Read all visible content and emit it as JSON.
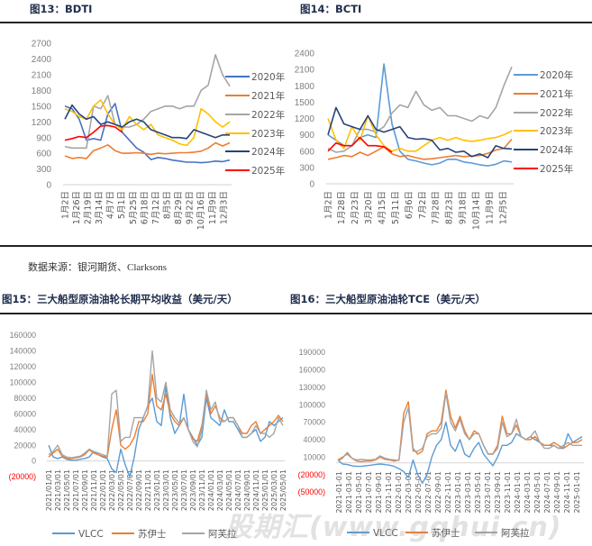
{
  "figures": {
    "fig13_title": "图13：BDTI",
    "fig14_title": "图14：BCTI",
    "fig15_title": "图15：三大船型原油油轮长期平均收益（美元/天）",
    "fig16_title": "图16：三大船型原油油轮TCE（美元/天）"
  },
  "source": "数据来源：银河期货、Clarksons",
  "watermark": "股期汇(www.gqhui.cn)",
  "chart_data": [
    {
      "id": "bdti",
      "type": "line",
      "title": "BDTI",
      "ylim": [
        0,
        2700
      ],
      "yticks": [
        "0",
        "300",
        "600",
        "900",
        "1200",
        "1500",
        "1800",
        "2100",
        "2400",
        "2700"
      ],
      "ytick_values": [
        0,
        300,
        600,
        900,
        1200,
        1500,
        1800,
        2100,
        2400,
        2700
      ],
      "xticks": [
        "1月2日",
        "1月26日",
        "2月19日",
        "3月14日",
        "4月7日",
        "5月1日",
        "5月25日",
        "6月18日",
        "7月12日",
        "8月5日",
        "8月29日",
        "9月22日",
        "10月16日",
        "11月9日",
        "12月3日"
      ],
      "x_unit": "half-month of year (0-23)",
      "legend_position": "right",
      "series": [
        {
          "name": "2020年",
          "color": "#4472C4",
          "values": [
            1500,
            1450,
            1250,
            850,
            880,
            850,
            1350,
            1550,
            1000,
            850,
            700,
            620,
            480,
            520,
            500,
            470,
            450,
            430,
            430,
            420,
            430,
            450,
            440,
            470
          ]
        },
        {
          "name": "2021年",
          "color": "#ED7D31",
          "values": [
            550,
            500,
            520,
            500,
            650,
            700,
            760,
            650,
            600,
            600,
            610,
            600,
            580,
            600,
            590,
            600,
            610,
            610,
            620,
            640,
            700,
            800,
            740,
            800
          ]
        },
        {
          "name": "2022年",
          "color": "#A5A5A5",
          "values": [
            730,
            700,
            700,
            700,
            1500,
            1450,
            1700,
            1150,
            1100,
            1100,
            1150,
            1250,
            1400,
            1450,
            1500,
            1500,
            1450,
            1500,
            1500,
            1800,
            1900,
            2480,
            2100,
            1880
          ]
        },
        {
          "name": "2023年",
          "color": "#FFC000",
          "values": [
            1450,
            1400,
            1300,
            1250,
            1500,
            1620,
            1350,
            1150,
            1050,
            1300,
            1150,
            1050,
            1150,
            950,
            900,
            850,
            780,
            750,
            900,
            1450,
            1350,
            1200,
            1100,
            1200
          ]
        },
        {
          "name": "2024年",
          "color": "#264478",
          "values": [
            1250,
            1520,
            1350,
            1250,
            1300,
            1150,
            1200,
            1150,
            1100,
            1200,
            1250,
            1200,
            1050,
            1000,
            950,
            900,
            900,
            880,
            1050,
            1000,
            950,
            900,
            950,
            950
          ]
        },
        {
          "name": "2025年",
          "color": "#FF0000",
          "values": [
            850,
            880,
            920,
            900,
            1000,
            1120,
            1130,
            1100,
            1000
          ]
        }
      ]
    },
    {
      "id": "bcti",
      "type": "line",
      "title": "BCTI",
      "ylim": [
        0,
        2400
      ],
      "yticks": [
        "0",
        "300",
        "600",
        "900",
        "1200",
        "1500",
        "1800",
        "2100",
        "2400"
      ],
      "ytick_values": [
        0,
        300,
        600,
        900,
        1200,
        1500,
        1800,
        2100,
        2400
      ],
      "xticks": [
        "1月2日",
        "1月28日",
        "2月23日",
        "3月20日",
        "4月15日",
        "5月11日",
        "6月6日",
        "7月2日",
        "7月28日",
        "8月23日",
        "9月18日",
        "10月14日",
        "11月9日",
        "12月5日"
      ],
      "x_unit": "half-month of year (0-23)",
      "legend_position": "right",
      "series": [
        {
          "name": "2020年",
          "color": "#5B9BD5",
          "values": [
            900,
            800,
            700,
            700,
            850,
            900,
            850,
            2200,
            1100,
            600,
            450,
            420,
            380,
            350,
            380,
            450,
            450,
            400,
            380,
            350,
            330,
            360,
            420,
            400
          ]
        },
        {
          "name": "2021年",
          "color": "#ED7D31",
          "values": [
            450,
            480,
            520,
            500,
            580,
            520,
            600,
            680,
            550,
            500,
            520,
            480,
            450,
            460,
            480,
            500,
            520,
            500,
            510,
            520,
            560,
            620,
            650,
            820
          ]
        },
        {
          "name": "2022年",
          "color": "#A5A5A5",
          "values": [
            650,
            580,
            600,
            700,
            1000,
            1000,
            950,
            1050,
            1300,
            1450,
            1400,
            1700,
            1450,
            1350,
            1400,
            1250,
            1250,
            1200,
            1150,
            1250,
            1200,
            1400,
            1800,
            2150
          ]
        },
        {
          "name": "2023年",
          "color": "#FFC000",
          "values": [
            1200,
            800,
            650,
            1050,
            800,
            1250,
            900,
            700,
            600,
            650,
            600,
            600,
            700,
            800,
            850,
            800,
            850,
            800,
            780,
            800,
            830,
            850,
            900,
            970
          ]
        },
        {
          "name": "2024年",
          "color": "#264478",
          "values": [
            900,
            1400,
            1100,
            1050,
            1000,
            1250,
            1000,
            950,
            1000,
            1050,
            850,
            820,
            830,
            800,
            620,
            650,
            580,
            600,
            500,
            550,
            480,
            700,
            650,
            640
          ]
        },
        {
          "name": "2025年",
          "color": "#FF0000",
          "values": [
            600,
            750,
            700,
            700,
            850,
            700,
            700,
            680,
            580
          ]
        }
      ]
    },
    {
      "id": "long_term_earnings",
      "type": "line",
      "title": "三大船型原油油轮长期平均收益（美元/天）",
      "ylim": [
        -20000,
        160000
      ],
      "yticks": [
        "(20000)",
        "0",
        "20000",
        "40000",
        "60000",
        "80000",
        "100000",
        "120000",
        "140000",
        "160000"
      ],
      "ytick_values": [
        -20000,
        0,
        20000,
        40000,
        60000,
        80000,
        100000,
        120000,
        140000,
        160000
      ],
      "xticks": [
        "2021/01/01",
        "2021/03/01",
        "2021/05/01",
        "2021/07/01",
        "2021/09/01",
        "2021/11/01",
        "2022/01/01",
        "2022/03/01",
        "2022/05/01",
        "2022/07/01",
        "2022/09/01",
        "2022/11/01",
        "2023/01/01",
        "2023/03/01",
        "2023/05/01",
        "2023/07/01",
        "2023/09/01",
        "2023/11/01",
        "2024/01/01",
        "2024/03/01",
        "2024/05/01",
        "2024/07/01",
        "2024/09/01",
        "2024/11/01",
        "2025/01/01",
        "2025/03/01",
        "2025/05/01"
      ],
      "x_unit": "monthly, 2021-01 to 2025-05",
      "legend_position": "bottom",
      "series": [
        {
          "name": "VLCC",
          "color": "#5B9BD5",
          "values": [
            20000,
            5000,
            3000,
            5000,
            2000,
            1000,
            1000,
            2000,
            3000,
            5000,
            12000,
            8000,
            5000,
            3000,
            -10000,
            -15000,
            15000,
            -5000,
            -20000,
            5000,
            40000,
            55000,
            70000,
            80000,
            50000,
            45000,
            95000,
            55000,
            35000,
            45000,
            85000,
            40000,
            30000,
            20000,
            30000,
            80000,
            55000,
            50000,
            45000,
            65000,
            50000,
            50000,
            40000,
            30000,
            30000,
            35000,
            40000,
            25000,
            30000,
            50000,
            45000,
            50000,
            55000
          ]
        },
        {
          "name": "苏伊士",
          "color": "#ED7D31",
          "values": [
            5000,
            10000,
            15000,
            6000,
            3000,
            3000,
            4000,
            5000,
            8000,
            14000,
            10000,
            8000,
            6000,
            5000,
            40000,
            65000,
            20000,
            15000,
            20000,
            30000,
            50000,
            50000,
            60000,
            110000,
            70000,
            65000,
            85000,
            60000,
            50000,
            45000,
            55000,
            40000,
            28000,
            25000,
            45000,
            85000,
            60000,
            70000,
            55000,
            50000,
            55000,
            55000,
            45000,
            35000,
            35000,
            45000,
            50000,
            35000,
            40000,
            45000,
            50000,
            58000,
            50000
          ]
        },
        {
          "name": "阿芙拉",
          "color": "#A5A5A5",
          "values": [
            8000,
            12000,
            20000,
            8000,
            5000,
            4000,
            5000,
            6000,
            10000,
            15000,
            12000,
            10000,
            8000,
            6000,
            85000,
            90000,
            25000,
            30000,
            30000,
            55000,
            55000,
            55000,
            70000,
            140000,
            80000,
            75000,
            100000,
            65000,
            55000,
            48000,
            55000,
            40000,
            25000,
            18000,
            40000,
            90000,
            65000,
            75000,
            50000,
            50000,
            55000,
            55000,
            45000,
            30000,
            30000,
            35000,
            45000,
            35000,
            35000,
            30000,
            35000,
            55000,
            45000
          ]
        }
      ]
    },
    {
      "id": "tce",
      "type": "line",
      "title": "三大船型原油油轮TCE（美元/天）",
      "ylim": [
        -50000,
        190000
      ],
      "yticks": [
        "(50000)",
        "(20000)",
        "10000",
        "40000",
        "70000",
        "100000",
        "130000",
        "160000",
        "190000"
      ],
      "ytick_values": [
        -50000,
        -20000,
        10000,
        40000,
        70000,
        100000,
        130000,
        160000,
        190000
      ],
      "xticks": [
        "2021-01-01",
        "2021-03-01",
        "2021-05-01",
        "2021-07-01",
        "2021-09-01",
        "2021-11-01",
        "2022-01-01",
        "2022-03-01",
        "2022-05-01",
        "2022-07-01",
        "2022-09-01",
        "2022-11-01",
        "2023-01-01",
        "2023-03-01",
        "2023-05-01",
        "2023-07-01",
        "2023-09-01",
        "2023-11-01",
        "2024-01-01",
        "2024-03-01",
        "2024-05-01",
        "2024-07-01",
        "2024-09-01",
        "2024-11-01",
        "2025-01-01"
      ],
      "x_unit": "monthly, 2021-01 to 2025-05",
      "legend_position": "bottom",
      "series": [
        {
          "name": "VLCC",
          "color": "#5B9BD5",
          "values": [
            5000,
            -2000,
            -3000,
            -5000,
            -6000,
            -6000,
            -5000,
            -4000,
            -3000,
            -2000,
            -3000,
            -4000,
            -6000,
            -10000,
            -15000,
            -25000,
            5000,
            -20000,
            -35000,
            -20000,
            10000,
            30000,
            40000,
            70000,
            30000,
            20000,
            40000,
            15000,
            10000,
            25000,
            35000,
            15000,
            5000,
            -5000,
            10000,
            30000,
            30000,
            35000,
            50000,
            45000,
            40000,
            45000,
            40000,
            35000,
            30000,
            30000,
            30000,
            25000,
            25000,
            50000,
            35000,
            40000,
            45000
          ]
        },
        {
          "name": "苏伊士",
          "color": "#ED7D31",
          "values": [
            5000,
            10000,
            15000,
            8000,
            3000,
            2000,
            3000,
            3000,
            5000,
            10000,
            6000,
            5000,
            3000,
            5000,
            85000,
            105000,
            25000,
            15000,
            20000,
            50000,
            55000,
            55000,
            70000,
            125000,
            80000,
            60000,
            80000,
            55000,
            40000,
            55000,
            50000,
            30000,
            15000,
            15000,
            30000,
            80000,
            50000,
            50000,
            65000,
            45000,
            40000,
            40000,
            45000,
            35000,
            30000,
            30000,
            35000,
            30000,
            25000,
            30000,
            35000,
            35000,
            40000
          ]
        },
        {
          "name": "阿芙拉",
          "color": "#A5A5A5",
          "values": [
            3000,
            8000,
            18000,
            8000,
            5000,
            6000,
            5000,
            5000,
            6000,
            12000,
            8000,
            6000,
            5000,
            4000,
            70000,
            95000,
            20000,
            20000,
            25000,
            45000,
            50000,
            50000,
            60000,
            120000,
            70000,
            55000,
            75000,
            50000,
            40000,
            50000,
            50000,
            30000,
            15000,
            15000,
            25000,
            70000,
            45000,
            50000,
            75000,
            45000,
            40000,
            45000,
            55000,
            35000,
            25000,
            25000,
            30000,
            25000,
            30000,
            35000,
            30000,
            30000,
            30000
          ]
        }
      ]
    }
  ]
}
